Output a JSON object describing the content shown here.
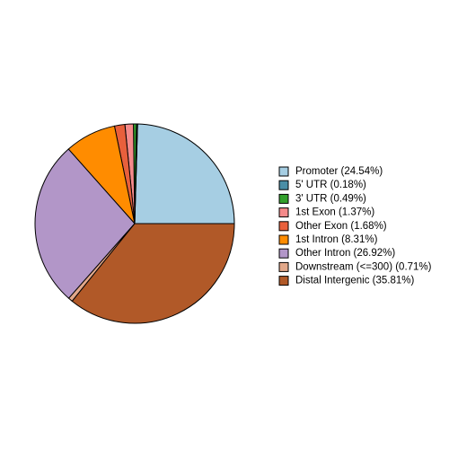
{
  "chart_data": {
    "type": "pie",
    "categories": [
      "Promoter (24.54%)",
      "5' UTR (0.18%)",
      "3' UTR (0.49%)",
      "1st Exon (1.37%)",
      "Other Exon (1.68%)",
      "1st Intron (8.31%)",
      "Other Intron (26.92%)",
      "Downstream (<=300) (0.71%)",
      "Distal Intergenic (35.81%)"
    ],
    "values": [
      24.54,
      0.18,
      0.49,
      1.37,
      1.68,
      8.31,
      26.92,
      0.71,
      35.81
    ],
    "colors": [
      "#a6cee3",
      "#4a8ea6",
      "#33a02c",
      "#f58a8a",
      "#e8603c",
      "#ff8c00",
      "#b296c8",
      "#e2a88a",
      "#b15928"
    ],
    "legend": "right"
  }
}
